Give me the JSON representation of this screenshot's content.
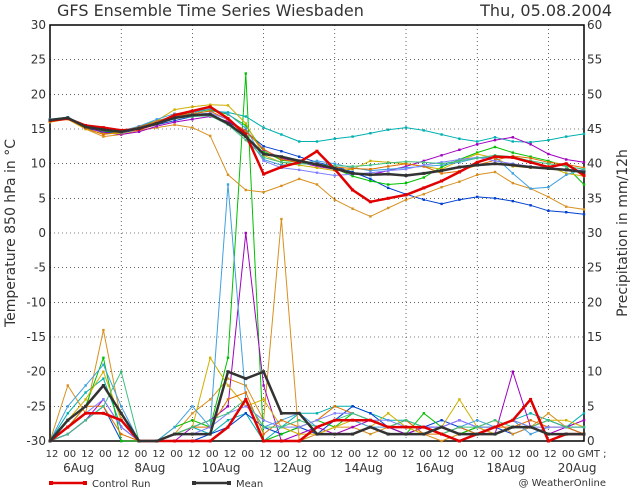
{
  "chart_data": {
    "type": "line",
    "title": "GFS Ensemble Time Series Wiesbaden",
    "date": "Thu, 05.08.2004",
    "ylabel": "Temperature 850 hPa in °C",
    "y2label": "Precipitation in mm/12h",
    "ylim": [
      -30,
      30
    ],
    "y2lim": [
      0,
      60
    ],
    "yticks": [
      "-30",
      "-25",
      "-20",
      "-15",
      "-10",
      "-5",
      "0",
      "5",
      "10",
      "15",
      "20",
      "25",
      "30"
    ],
    "y2ticks": [
      "0",
      "5",
      "10",
      "15",
      "20",
      "25",
      "30",
      "35",
      "40",
      "45",
      "50",
      "55",
      "60"
    ],
    "hour_labels": [
      "12",
      "00",
      "12",
      "00",
      "12",
      "00",
      "12",
      "00",
      "12",
      "00",
      "12",
      "00",
      "12",
      "00",
      "12",
      "00",
      "12",
      "00",
      "12",
      "00",
      "12",
      "00",
      "12",
      "00",
      "12",
      "00",
      "12",
      "00",
      "12",
      "00"
    ],
    "gmt_label": "GMT ;",
    "date_labels": [
      "6Aug",
      "8Aug",
      "10Aug",
      "12Aug",
      "14Aug",
      "16Aug",
      "18Aug",
      "20Aug"
    ],
    "grid": true,
    "legend": [
      {
        "name": "Control Run",
        "color": "#e00000"
      },
      {
        "name": "Mean",
        "color": "#333333"
      }
    ],
    "copyright": "@ WeatherOnline",
    "temperature_series": [
      {
        "name": "Control Run",
        "color": "#e00000",
        "width": 2.5,
        "values": [
          16.2,
          16.5,
          15.5,
          15.2,
          14.8,
          15.0,
          15.8,
          17.0,
          17.6,
          18.2,
          16.5,
          14.2,
          8.5,
          9.5,
          10.2,
          11.8,
          9.2,
          6.2,
          4.5,
          5.0,
          5.5,
          6.5,
          7.5,
          8.8,
          10.2,
          11.0,
          10.9,
          10.2,
          9.5,
          10.0,
          8.3
        ]
      },
      {
        "name": "Mean",
        "color": "#333333",
        "width": 2.5,
        "values": [
          16.3,
          16.6,
          15.3,
          14.9,
          14.6,
          15.1,
          15.8,
          16.6,
          17.0,
          17.1,
          15.8,
          13.9,
          11.4,
          11.0,
          10.4,
          9.9,
          9.3,
          8.6,
          8.4,
          8.5,
          8.3,
          8.6,
          9.0,
          9.5,
          9.8,
          10.0,
          9.8,
          9.5,
          9.3,
          9.1,
          8.8
        ]
      },
      {
        "color": "#00b0b0",
        "width": 1,
        "values": [
          16.4,
          16.7,
          15.4,
          14.4,
          14.6,
          15.4,
          16.2,
          16.8,
          17.2,
          17.6,
          17.4,
          16.8,
          15.2,
          14.2,
          13.2,
          13.2,
          13.6,
          13.9,
          14.4,
          14.9,
          15.2,
          14.8,
          14.2,
          13.6,
          13.2,
          13.8,
          13.2,
          13.1,
          13.4,
          13.9,
          14.3
        ]
      },
      {
        "color": "#0040d0",
        "width": 1,
        "values": [
          16.2,
          16.5,
          15.1,
          14.6,
          14.4,
          15.0,
          15.6,
          16.2,
          16.8,
          17.0,
          16.0,
          14.6,
          12.5,
          11.8,
          11.0,
          10.2,
          9.6,
          8.8,
          7.8,
          6.5,
          5.6,
          4.8,
          4.2,
          4.8,
          5.2,
          5.0,
          4.6,
          4.0,
          3.2,
          3.0,
          2.7
        ]
      },
      {
        "color": "#d89020",
        "width": 1,
        "values": [
          16.1,
          16.4,
          15.0,
          13.9,
          14.2,
          14.8,
          15.2,
          15.6,
          15.2,
          14.0,
          8.4,
          6.2,
          5.9,
          6.8,
          7.8,
          7.0,
          4.8,
          3.5,
          2.4,
          3.6,
          4.8,
          5.6,
          6.6,
          7.4,
          8.4,
          8.8,
          7.2,
          6.4,
          5.2,
          3.8,
          3.4
        ]
      },
      {
        "color": "#00c000",
        "width": 1,
        "values": [
          16.3,
          16.6,
          15.2,
          14.7,
          14.5,
          15.2,
          16.0,
          17.0,
          17.4,
          17.8,
          17.1,
          15.5,
          11.8,
          10.5,
          10.2,
          9.8,
          9.3,
          8.2,
          7.5,
          7.0,
          7.2,
          8.0,
          9.5,
          10.6,
          11.6,
          12.4,
          11.6,
          11.0,
          10.4,
          9.6,
          7.0
        ]
      },
      {
        "color": "#a000c0",
        "width": 1,
        "values": [
          16.2,
          16.5,
          15.3,
          14.5,
          14.2,
          14.6,
          15.4,
          16.0,
          16.4,
          16.8,
          16.1,
          14.8,
          12.0,
          10.8,
          10.2,
          9.6,
          9.2,
          8.6,
          8.4,
          9.0,
          9.6,
          10.4,
          11.2,
          12.0,
          12.8,
          13.4,
          13.8,
          12.8,
          11.4,
          10.6,
          10.2
        ]
      },
      {
        "color": "#d0b000",
        "width": 1,
        "values": [
          16.0,
          16.4,
          15.0,
          14.3,
          14.4,
          15.2,
          16.2,
          17.8,
          18.2,
          18.5,
          18.4,
          15.8,
          11.2,
          10.2,
          9.8,
          9.4,
          9.0,
          9.2,
          10.4,
          10.2,
          10.0,
          9.6,
          9.2,
          10.4,
          11.4,
          10.8,
          9.6,
          9.4,
          9.6,
          8.6,
          8.2
        ]
      },
      {
        "color": "#40a0e0",
        "width": 1,
        "values": [
          16.4,
          16.6,
          15.4,
          14.8,
          14.7,
          15.4,
          16.4,
          17.2,
          17.4,
          17.9,
          17.2,
          15.1,
          10.6,
          9.8,
          10.0,
          10.4,
          10.0,
          9.4,
          9.0,
          9.2,
          9.4,
          9.6,
          9.8,
          10.2,
          10.8,
          11.0,
          8.6,
          6.4,
          6.6,
          8.4,
          9.2
        ]
      },
      {
        "color": "#e07000",
        "width": 1,
        "values": [
          16.2,
          16.5,
          15.1,
          14.2,
          14.6,
          15.3,
          16.1,
          16.9,
          17.2,
          17.6,
          16.3,
          14.7,
          12.1,
          10.6,
          10.2,
          10.0,
          9.5,
          9.3,
          9.2,
          9.6,
          10.0,
          9.6,
          8.6,
          8.9,
          9.8,
          10.5,
          11.1,
          10.8,
          10.2,
          9.9,
          9.4
        ]
      },
      {
        "color": "#8080ff",
        "width": 1,
        "values": [
          16.3,
          16.6,
          15.3,
          14.9,
          14.5,
          15.2,
          15.9,
          16.7,
          17.1,
          17.3,
          16.4,
          14.2,
          10.4,
          9.4,
          9.1,
          8.7,
          8.3,
          8.5,
          8.7,
          9.0,
          9.2,
          9.8,
          10.2,
          10.6,
          10.9,
          10.4,
          10.0,
          9.6,
          9.4,
          9.2,
          9.0
        ]
      },
      {
        "color": "#40c080",
        "width": 1,
        "values": [
          16.2,
          16.5,
          15.4,
          14.8,
          14.6,
          15.0,
          15.7,
          16.5,
          16.8,
          16.9,
          15.6,
          13.4,
          10.9,
          10.2,
          10.0,
          9.9,
          9.7,
          9.6,
          9.8,
          10.1,
          10.3,
          10.2,
          10.0,
          10.4,
          10.8,
          11.2,
          11.0,
          10.4,
          10.0,
          9.6,
          9.2
        ]
      }
    ],
    "precipitation_series": [
      {
        "name": "Control Run",
        "color": "#e00000",
        "width": 2.5,
        "values": [
          0,
          2,
          4,
          4,
          3,
          0,
          0,
          0,
          0,
          0,
          2,
          6,
          0,
          0,
          0,
          2,
          3,
          3,
          3,
          2,
          2,
          2,
          1,
          0,
          1,
          2,
          3,
          6,
          0,
          1,
          1
        ]
      },
      {
        "name": "Mean",
        "color": "#333333",
        "width": 2.5,
        "values": [
          0,
          3,
          5,
          8,
          4,
          0,
          0,
          1,
          1,
          1,
          10,
          9,
          10,
          4,
          4,
          1,
          1,
          1,
          2,
          1,
          1,
          1,
          2,
          1,
          1,
          1,
          2,
          2,
          1,
          1,
          1
        ]
      },
      {
        "color": "#00b0b0",
        "width": 1,
        "values": [
          0,
          4,
          7,
          9,
          2,
          0,
          0,
          1,
          2,
          1,
          3,
          4,
          0,
          2,
          4,
          4,
          5,
          5,
          4,
          3,
          3,
          2,
          2,
          1,
          2,
          2,
          3,
          4,
          3,
          2,
          4
        ]
      },
      {
        "color": "#0040d0",
        "width": 1,
        "values": [
          0,
          1,
          3,
          5,
          0,
          0,
          0,
          0,
          0,
          1,
          2,
          4,
          2,
          1,
          2,
          1,
          3,
          5,
          4,
          2,
          1,
          2,
          3,
          2,
          1,
          2,
          1,
          2,
          3,
          2,
          1
        ]
      },
      {
        "color": "#d89020",
        "width": 1,
        "values": [
          0,
          8,
          4,
          16,
          3,
          0,
          0,
          1,
          4,
          6,
          9,
          8,
          3,
          32,
          0,
          1,
          2,
          2,
          1,
          2,
          3,
          1,
          0,
          1,
          2,
          3,
          1,
          2,
          4,
          2,
          3
        ]
      },
      {
        "color": "#00c000",
        "width": 1,
        "values": [
          0,
          2,
          5,
          12,
          0,
          0,
          0,
          2,
          3,
          2,
          12,
          53,
          0,
          1,
          2,
          3,
          2,
          4,
          3,
          2,
          1,
          4,
          2,
          1,
          2,
          2,
          3,
          2,
          1,
          1,
          1
        ]
      },
      {
        "color": "#a000c0",
        "width": 1,
        "values": [
          0,
          1,
          3,
          6,
          2,
          0,
          0,
          0,
          2,
          3,
          5,
          30,
          8,
          0,
          1,
          2,
          1,
          2,
          3,
          2,
          1,
          2,
          2,
          3,
          2,
          1,
          10,
          2,
          1,
          2,
          3
        ]
      },
      {
        "color": "#d0b000",
        "width": 1,
        "values": [
          0,
          3,
          6,
          10,
          3,
          0,
          0,
          1,
          2,
          12,
          8,
          5,
          6,
          2,
          1,
          1,
          2,
          3,
          2,
          4,
          2,
          1,
          2,
          6,
          2,
          1,
          2,
          2,
          3,
          3,
          2
        ]
      },
      {
        "color": "#40a0e0",
        "width": 1,
        "values": [
          0,
          5,
          8,
          11,
          5,
          0,
          0,
          2,
          5,
          2,
          37,
          6,
          2,
          3,
          4,
          2,
          3,
          3,
          2,
          2,
          3,
          2,
          1,
          2,
          3,
          2,
          3,
          1,
          2,
          2,
          2
        ]
      },
      {
        "color": "#e07000",
        "width": 1,
        "values": [
          0,
          2,
          5,
          5,
          1,
          0,
          0,
          1,
          2,
          2,
          6,
          7,
          1,
          3,
          2,
          3,
          5,
          4,
          3,
          2,
          3,
          1,
          1,
          2,
          1,
          2,
          2,
          3,
          2,
          2,
          1
        ]
      },
      {
        "color": "#8080ff",
        "width": 1,
        "values": [
          0,
          2,
          4,
          6,
          2,
          0,
          0,
          1,
          1,
          2,
          4,
          5,
          3,
          2,
          2,
          3,
          4,
          4,
          3,
          3,
          2,
          2,
          2,
          3,
          2,
          2,
          3,
          2,
          2,
          2,
          2
        ]
      },
      {
        "color": "#40c080",
        "width": 1,
        "values": [
          0,
          1,
          3,
          5,
          10,
          0,
          0,
          1,
          2,
          3,
          4,
          6,
          2,
          2,
          3,
          2,
          3,
          4,
          3,
          2,
          3,
          2,
          1,
          2,
          2,
          3,
          2,
          2,
          3,
          2,
          2
        ]
      }
    ]
  }
}
